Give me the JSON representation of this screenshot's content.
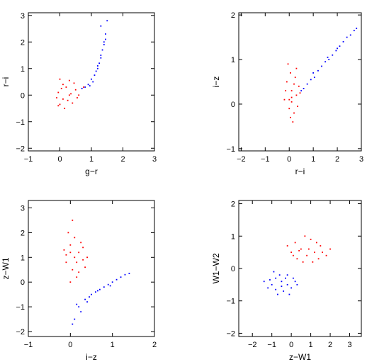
{
  "chart_data": [
    {
      "type": "scatter",
      "xlabel": "g−r",
      "ylabel": "r−i",
      "xlim": [
        -1,
        3
      ],
      "ylim": [
        -2.1,
        3.1
      ],
      "xticks": [
        -1,
        0,
        1,
        2,
        3
      ],
      "yticks": [
        -2,
        -1,
        0,
        1,
        2,
        3
      ],
      "series": [
        {
          "color": "#ff0000",
          "points": [
            [
              0.0,
              -0.35
            ],
            [
              -0.05,
              0.1
            ],
            [
              0.1,
              0.4
            ],
            [
              0.25,
              -0.2
            ],
            [
              0.5,
              0.2
            ],
            [
              0.3,
              0.55
            ],
            [
              0.15,
              -0.5
            ],
            [
              0.6,
              0.0
            ],
            [
              0.05,
              0.25
            ],
            [
              -0.1,
              -0.1
            ],
            [
              0.35,
              0.05
            ],
            [
              0.2,
              0.3
            ],
            [
              0.75,
              0.3
            ],
            [
              0.4,
              -0.3
            ],
            [
              0.0,
              0.6
            ],
            [
              0.1,
              -0.15
            ],
            [
              0.45,
              0.45
            ],
            [
              -0.05,
              -0.4
            ],
            [
              0.3,
              0.0
            ],
            [
              0.55,
              -0.1
            ]
          ]
        },
        {
          "color": "#0000ff",
          "points": [
            [
              1.3,
              2.6
            ],
            [
              1.45,
              2.3
            ],
            [
              1.4,
              2.0
            ],
            [
              1.35,
              1.7
            ],
            [
              1.3,
              1.4
            ],
            [
              1.2,
              1.1
            ],
            [
              1.15,
              0.9
            ],
            [
              1.0,
              0.6
            ],
            [
              0.9,
              0.4
            ],
            [
              0.8,
              0.3
            ],
            [
              1.5,
              2.8
            ],
            [
              1.25,
              1.2
            ],
            [
              1.4,
              1.9
            ],
            [
              1.1,
              0.75
            ],
            [
              0.7,
              0.25
            ],
            [
              1.3,
              1.5
            ],
            [
              1.45,
              2.1
            ],
            [
              1.2,
              1.0
            ],
            [
              1.05,
              0.5
            ],
            [
              0.95,
              0.35
            ]
          ]
        }
      ]
    },
    {
      "type": "scatter",
      "xlabel": "r−i",
      "ylabel": "i−z",
      "xlim": [
        -2.1,
        3.0
      ],
      "ylim": [
        -1.05,
        2.05
      ],
      "xticks": [
        -2,
        -1,
        0,
        1,
        2,
        3
      ],
      "yticks": [
        -1,
        0,
        1,
        2
      ],
      "series": [
        {
          "color": "#ff0000",
          "points": [
            [
              0.0,
              0.1
            ],
            [
              0.1,
              0.3
            ],
            [
              -0.1,
              0.5
            ],
            [
              0.2,
              -0.2
            ],
            [
              0.05,
              0.7
            ],
            [
              0.3,
              0.2
            ],
            [
              -0.2,
              0.1
            ],
            [
              0.15,
              -0.4
            ],
            [
              0.4,
              0.4
            ],
            [
              0.0,
              -0.1
            ],
            [
              0.25,
              0.6
            ],
            [
              -0.05,
              0.9
            ],
            [
              0.1,
              0.15
            ],
            [
              0.35,
              -0.05
            ],
            [
              0.2,
              0.45
            ],
            [
              -0.15,
              0.3
            ],
            [
              0.05,
              -0.3
            ],
            [
              0.3,
              0.8
            ],
            [
              0.1,
              0.05
            ],
            [
              0.45,
              0.25
            ]
          ]
        },
        {
          "color": "#0000ff",
          "points": [
            [
              0.6,
              0.35
            ],
            [
              0.9,
              0.55
            ],
            [
              1.2,
              0.75
            ],
            [
              1.5,
              0.95
            ],
            [
              1.8,
              1.1
            ],
            [
              2.1,
              1.3
            ],
            [
              2.4,
              1.5
            ],
            [
              2.7,
              1.65
            ],
            [
              0.75,
              0.45
            ],
            [
              1.05,
              0.6
            ],
            [
              1.35,
              0.85
            ],
            [
              1.65,
              1.0
            ],
            [
              1.95,
              1.2
            ],
            [
              2.25,
              1.4
            ],
            [
              2.55,
              1.55
            ],
            [
              0.5,
              0.3
            ],
            [
              1.0,
              0.7
            ],
            [
              1.6,
              1.05
            ],
            [
              2.0,
              1.25
            ],
            [
              2.8,
              1.7
            ]
          ]
        }
      ]
    },
    {
      "type": "scatter",
      "xlabel": "i−z",
      "ylabel": "z−W1",
      "xlim": [
        -1,
        2
      ],
      "ylim": [
        -2.2,
        3.3
      ],
      "xticks": [
        -1,
        0,
        1,
        2
      ],
      "yticks": [
        -2,
        -1,
        0,
        1,
        2,
        3
      ],
      "series": [
        {
          "color": "#ff0000",
          "points": [
            [
              0.0,
              1.5
            ],
            [
              0.1,
              1.0
            ],
            [
              -0.1,
              0.8
            ],
            [
              0.2,
              1.2
            ],
            [
              0.05,
              0.5
            ],
            [
              0.3,
              0.9
            ],
            [
              -0.05,
              2.0
            ],
            [
              0.15,
              0.2
            ],
            [
              0.25,
              1.6
            ],
            [
              0.0,
              0.0
            ],
            [
              0.1,
              1.8
            ],
            [
              -0.15,
              1.3
            ],
            [
              0.35,
              0.6
            ],
            [
              0.05,
              2.5
            ],
            [
              0.2,
              0.4
            ],
            [
              -0.1,
              1.1
            ],
            [
              0.3,
              1.4
            ],
            [
              0.15,
              0.8
            ],
            [
              0.4,
              1.0
            ],
            [
              0.0,
              1.2
            ]
          ]
        },
        {
          "color": "#0000ff",
          "points": [
            [
              0.1,
              -1.5
            ],
            [
              0.2,
              -1.0
            ],
            [
              0.35,
              -0.7
            ],
            [
              0.5,
              -0.5
            ],
            [
              0.7,
              -0.3
            ],
            [
              0.9,
              -0.1
            ],
            [
              1.1,
              0.1
            ],
            [
              1.3,
              0.3
            ],
            [
              0.05,
              -1.7
            ],
            [
              0.25,
              -1.2
            ],
            [
              0.45,
              -0.6
            ],
            [
              0.6,
              -0.4
            ],
            [
              0.8,
              -0.2
            ],
            [
              1.0,
              0.0
            ],
            [
              1.2,
              0.2
            ],
            [
              0.15,
              -0.9
            ],
            [
              0.4,
              -0.8
            ],
            [
              0.65,
              -0.35
            ],
            [
              0.95,
              -0.15
            ],
            [
              1.4,
              0.35
            ]
          ]
        }
      ]
    },
    {
      "type": "scatter",
      "xlabel": "z−W1",
      "ylabel": "W1−W2",
      "xlim": [
        -2.7,
        3.6
      ],
      "ylim": [
        -2.1,
        2.1
      ],
      "xticks": [
        -2,
        -1,
        0,
        1,
        2,
        3
      ],
      "yticks": [
        -2,
        -1,
        0,
        1,
        2
      ],
      "series": [
        {
          "color": "#ff0000",
          "points": [
            [
              0.5,
              0.6
            ],
            [
              0.8,
              0.4
            ],
            [
              1.2,
              0.5
            ],
            [
              0.2,
              0.8
            ],
            [
              1.5,
              0.7
            ],
            [
              0.0,
              0.5
            ],
            [
              1.0,
              0.9
            ],
            [
              0.6,
              0.2
            ],
            [
              1.8,
              0.4
            ],
            [
              0.3,
              0.3
            ],
            [
              1.4,
              0.3
            ],
            [
              0.9,
              0.6
            ],
            [
              -0.2,
              0.7
            ],
            [
              2.0,
              0.6
            ],
            [
              0.7,
              1.0
            ],
            [
              1.1,
              0.2
            ],
            [
              0.4,
              0.55
            ],
            [
              1.6,
              0.5
            ],
            [
              0.1,
              0.4
            ],
            [
              1.3,
              0.8
            ]
          ]
        },
        {
          "color": "#0000ff",
          "points": [
            [
              -0.5,
              -0.4
            ],
            [
              -0.2,
              -0.5
            ],
            [
              -0.8,
              -0.3
            ],
            [
              0.0,
              -0.6
            ],
            [
              -1.0,
              -0.5
            ],
            [
              -0.4,
              -0.7
            ],
            [
              -0.6,
              -0.2
            ],
            [
              0.2,
              -0.4
            ],
            [
              -1.2,
              -0.6
            ],
            [
              -0.3,
              -0.3
            ],
            [
              -0.7,
              -0.8
            ],
            [
              0.3,
              -0.5
            ],
            [
              -0.9,
              -0.1
            ],
            [
              -0.1,
              -0.8
            ],
            [
              -1.4,
              -0.4
            ],
            [
              -0.5,
              -0.55
            ],
            [
              0.1,
              -0.3
            ],
            [
              -0.8,
              -0.65
            ],
            [
              -0.2,
              -0.2
            ],
            [
              -1.1,
              -0.35
            ]
          ]
        }
      ]
    }
  ]
}
